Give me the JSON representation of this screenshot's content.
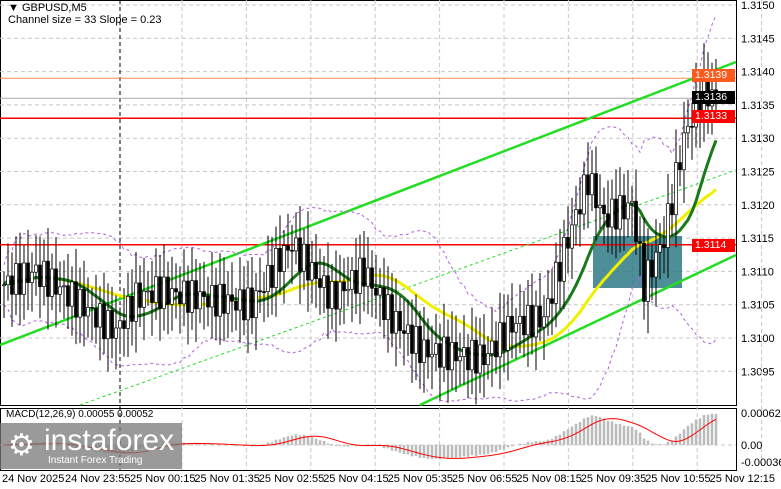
{
  "header": {
    "symbol": "GBPUSD,M5",
    "indicator": "Channel size = 33 Slope = 0.23"
  },
  "macd": {
    "label": "MACD(12,26,9) 0.00055 0.00052",
    "ticks": [
      "0.00062",
      "0.00",
      "-0.00036"
    ]
  },
  "price_tags": {
    "high": "1.3139",
    "current": "1.3136",
    "resistance": "1.3133",
    "support": "1.3114"
  },
  "logo": {
    "name": "instaforex",
    "slogan": "Instant Forex Trading"
  },
  "colors": {
    "up": "#000000",
    "channel": "#22dd22",
    "ma_fast": "#1a7a1a",
    "ma_slow": "#f0f000",
    "bands": "#b060e0",
    "level": "#ff0000",
    "macd_hist": "#bbbbbb",
    "macd_signal": "#ff0000",
    "zone": "#2e7a86"
  },
  "chart_data": {
    "type": "candlestick",
    "ylim": [
      1.309,
      1.315
    ],
    "yticks": [
      "1.3150",
      "1.3145",
      "1.3140",
      "1.3135",
      "1.3130",
      "1.3125",
      "1.3120",
      "1.3115",
      "1.3110",
      "1.3105",
      "1.3100",
      "1.3095"
    ],
    "xticks": [
      "24 Nov 2025",
      "24 Nov 23:55",
      "25 Nov 00:15",
      "25 Nov 01:35",
      "25 Nov 02:55",
      "25 Nov 04:15",
      "25 Nov 05:35",
      "25 Nov 06:55",
      "25 Nov 08:15",
      "25 Nov 09:35",
      "25 Nov 10:55",
      "25 Nov 12:15"
    ],
    "levels": [
      1.3133,
      1.3114
    ],
    "close_path": [
      [
        0,
        1.3108
      ],
      [
        8,
        1.311
      ],
      [
        15,
        1.3107
      ],
      [
        28,
        1.3101
      ],
      [
        33,
        1.3106
      ],
      [
        38,
        1.3107
      ],
      [
        50,
        1.3106
      ],
      [
        62,
        1.3105
      ],
      [
        69,
        1.3112
      ],
      [
        72,
        1.3114
      ],
      [
        82,
        1.3106
      ],
      [
        90,
        1.311
      ],
      [
        97,
        1.3103
      ],
      [
        105,
        1.3098
      ],
      [
        120,
        1.3097
      ],
      [
        127,
        1.3102
      ],
      [
        135,
        1.3103
      ],
      [
        140,
        1.3113
      ],
      [
        146,
        1.3124
      ],
      [
        150,
        1.3118
      ],
      [
        157,
        1.312
      ],
      [
        160,
        1.3108
      ],
      [
        165,
        1.3115
      ],
      [
        170,
        1.313
      ],
      [
        172,
        1.3133
      ],
      [
        175,
        1.3137
      ],
      [
        178,
        1.3136
      ]
    ]
  }
}
